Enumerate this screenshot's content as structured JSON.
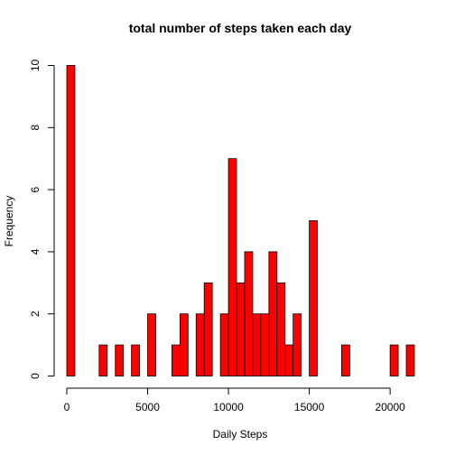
{
  "chart_data": {
    "type": "bar",
    "title": "total number of steps taken each day",
    "xlabel": "Daily Steps",
    "ylabel": "Frequency",
    "bin_width": 500,
    "bin_start": 0,
    "frequencies": [
      10,
      0,
      0,
      0,
      1,
      0,
      1,
      0,
      1,
      0,
      2,
      0,
      0,
      1,
      2,
      0,
      2,
      3,
      0,
      2,
      7,
      3,
      4,
      2,
      2,
      4,
      3,
      1,
      2,
      0,
      5,
      0,
      0,
      0,
      1,
      0,
      0,
      0,
      0,
      0,
      1,
      0,
      1
    ],
    "xlim": [
      0,
      21500
    ],
    "ylim": [
      0,
      10
    ],
    "x_ticks": [
      0,
      5000,
      10000,
      15000,
      20000
    ],
    "y_ticks": [
      0,
      2,
      4,
      6,
      8,
      10
    ],
    "bar_color": "#ff0000",
    "grid": false
  }
}
